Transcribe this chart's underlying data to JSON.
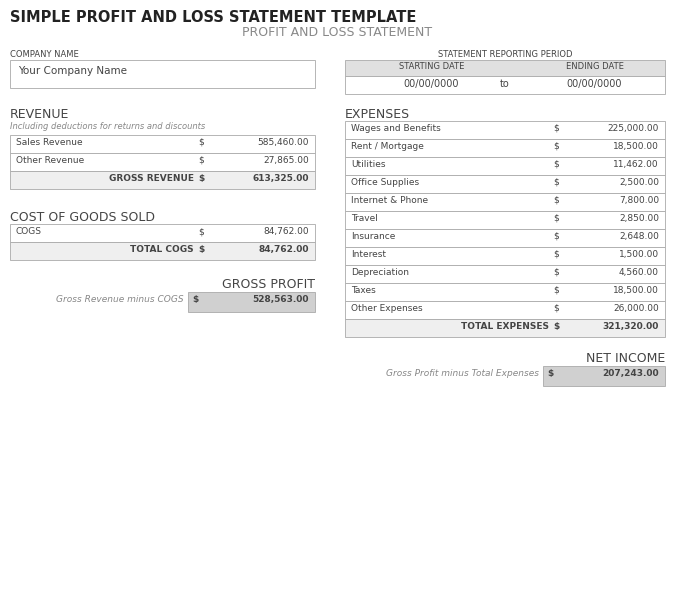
{
  "title_main": "SIMPLE PROFIT AND LOSS STATEMENT TEMPLATE",
  "title_sub": "PROFIT AND LOSS STATEMENT",
  "company_label": "COMPANY NAME",
  "company_value": "Your Company Name",
  "period_label": "STATEMENT REPORTING PERIOD",
  "starting_date_label": "STARTING DATE",
  "ending_date_label": "ENDING DATE",
  "starting_date_value": "00/00/0000",
  "ending_date_value": "00/00/0000",
  "to_label": "to",
  "revenue_label": "REVENUE",
  "revenue_subtitle": "Including deductions for returns and discounts",
  "revenue_rows": [
    {
      "label": "Sales Revenue",
      "symbol": "$",
      "value": "585,460.00"
    },
    {
      "label": "Other Revenue",
      "symbol": "$",
      "value": "27,865.00"
    }
  ],
  "gross_revenue_label": "GROSS REVENUE",
  "gross_revenue_symbol": "$",
  "gross_revenue_value": "613,325.00",
  "cogs_label": "COST OF GOODS SOLD",
  "cogs_rows": [
    {
      "label": "COGS",
      "symbol": "$",
      "value": "84,762.00"
    }
  ],
  "total_cogs_label": "TOTAL COGS",
  "total_cogs_symbol": "$",
  "total_cogs_value": "84,762.00",
  "gross_profit_label": "GROSS PROFIT",
  "gross_profit_sublabel": "Gross Revenue minus COGS",
  "gross_profit_symbol": "$",
  "gross_profit_value": "528,563.00",
  "expenses_label": "EXPENSES",
  "expenses_rows": [
    {
      "label": "Wages and Benefits",
      "symbol": "$",
      "value": "225,000.00"
    },
    {
      "label": "Rent / Mortgage",
      "symbol": "$",
      "value": "18,500.00"
    },
    {
      "label": "Utilities",
      "symbol": "$",
      "value": "11,462.00"
    },
    {
      "label": "Office Supplies",
      "symbol": "$",
      "value": "2,500.00"
    },
    {
      "label": "Internet & Phone",
      "symbol": "$",
      "value": "7,800.00"
    },
    {
      "label": "Travel",
      "symbol": "$",
      "value": "2,850.00"
    },
    {
      "label": "Insurance",
      "symbol": "$",
      "value": "2,648.00"
    },
    {
      "label": "Interest",
      "symbol": "$",
      "value": "1,500.00"
    },
    {
      "label": "Depreciation",
      "symbol": "$",
      "value": "4,560.00"
    },
    {
      "label": "Taxes",
      "symbol": "$",
      "value": "18,500.00"
    },
    {
      "label": "Other Expenses",
      "symbol": "$",
      "value": "26,000.00"
    }
  ],
  "total_expenses_label": "TOTAL EXPENSES",
  "total_expenses_symbol": "$",
  "total_expenses_value": "321,320.00",
  "net_income_label": "NET INCOME",
  "net_income_sublabel": "Gross Profit minus Total Expenses",
  "net_income_symbol": "$",
  "net_income_value": "207,243.00",
  "bg_color": "#ffffff",
  "header_bg": "#e0e0e0",
  "row_bg_white": "#ffffff",
  "row_bg_light": "#efefef",
  "total_row_bg": "#d0d0d0",
  "border_color": "#aaaaaa",
  "text_dark": "#444444",
  "title_main_color": "#222222",
  "title_sub_color": "#888888",
  "subtitle_color": "#888888"
}
